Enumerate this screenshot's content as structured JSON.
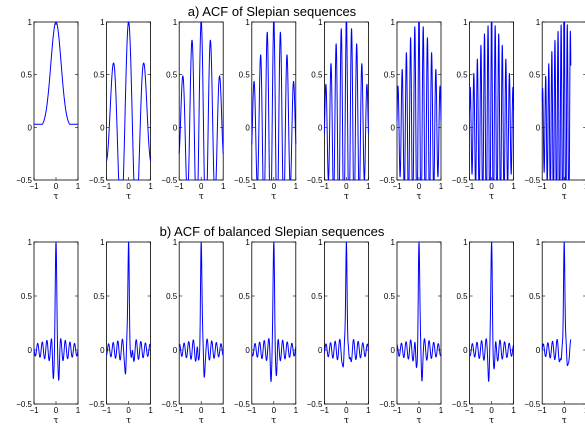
{
  "colors": {
    "line": "#0000ff",
    "frame": "#000000",
    "background": "#ffffff"
  },
  "chart_data": [
    {
      "type": "line",
      "title": "a) ACF of  Slepian sequences",
      "xlabel": "τ",
      "ylabel": "",
      "xlim": [
        -1,
        1
      ],
      "ylim": [
        -0.5,
        1
      ],
      "x_ticks": [
        -1,
        0,
        1
      ],
      "x_tick_labels": [
        "−1",
        "0",
        "1"
      ],
      "y_ticks": [
        -0.5,
        0,
        0.5,
        1
      ],
      "y_tick_labels": [
        "−0.5",
        "0",
        "0.5",
        "1"
      ],
      "grid": false,
      "panels": [
        {
          "order": 0,
          "main_lobe_halfwidth": 0.55,
          "x_range_shown": [
            -1,
            1
          ]
        },
        {
          "order": 1,
          "main_lobe_halfwidth": 0.22,
          "x_range_shown": [
            -1,
            1
          ]
        },
        {
          "order": 2,
          "main_lobe_halfwidth": 0.14,
          "x_range_shown": [
            -1,
            1
          ]
        },
        {
          "order": 3,
          "main_lobe_halfwidth": 0.1,
          "x_range_shown": [
            -1,
            1
          ]
        },
        {
          "order": 4,
          "main_lobe_halfwidth": 0.08,
          "x_range_shown": [
            -1,
            1
          ]
        },
        {
          "order": 5,
          "main_lobe_halfwidth": 0.065,
          "x_range_shown": [
            -1,
            1
          ]
        },
        {
          "order": 6,
          "main_lobe_halfwidth": 0.055,
          "x_range_shown": [
            -1,
            1
          ]
        },
        {
          "order": 7,
          "main_lobe_halfwidth": 0.048,
          "x_range_shown": [
            -1,
            0.3
          ]
        }
      ]
    },
    {
      "type": "line",
      "title": "b) ACF of balanced Slepian sequences",
      "xlabel": "τ",
      "ylabel": "",
      "xlim": [
        -1,
        1
      ],
      "ylim": [
        -0.5,
        1
      ],
      "x_ticks": [
        -1,
        0,
        1
      ],
      "x_tick_labels": [
        "−1",
        "0",
        "1"
      ],
      "y_ticks": [
        -0.5,
        0,
        0.5,
        1
      ],
      "y_tick_labels": [
        "−0.5",
        "0",
        "0.5",
        "1"
      ],
      "grid": false,
      "panels": [
        {
          "order": 0,
          "main_lobe_halfwidth": 0.1,
          "sidelobe_level": 0.2,
          "x_range_shown": [
            -1,
            1
          ]
        },
        {
          "order": 1,
          "main_lobe_halfwidth": 0.1,
          "sidelobe_level": 0.2,
          "x_range_shown": [
            -1,
            1
          ]
        },
        {
          "order": 2,
          "main_lobe_halfwidth": 0.1,
          "sidelobe_level": 0.2,
          "x_range_shown": [
            -1,
            1
          ]
        },
        {
          "order": 3,
          "main_lobe_halfwidth": 0.1,
          "sidelobe_level": 0.2,
          "x_range_shown": [
            -1,
            1
          ]
        },
        {
          "order": 4,
          "main_lobe_halfwidth": 0.1,
          "sidelobe_level": 0.2,
          "x_range_shown": [
            -1,
            1
          ]
        },
        {
          "order": 5,
          "main_lobe_halfwidth": 0.1,
          "sidelobe_level": 0.2,
          "x_range_shown": [
            -1,
            1
          ]
        },
        {
          "order": 6,
          "main_lobe_halfwidth": 0.1,
          "sidelobe_level": 0.2,
          "x_range_shown": [
            -1,
            1
          ]
        },
        {
          "order": 7,
          "main_lobe_halfwidth": 0.1,
          "sidelobe_level": 0.2,
          "x_range_shown": [
            -1,
            0.3
          ]
        }
      ]
    }
  ]
}
